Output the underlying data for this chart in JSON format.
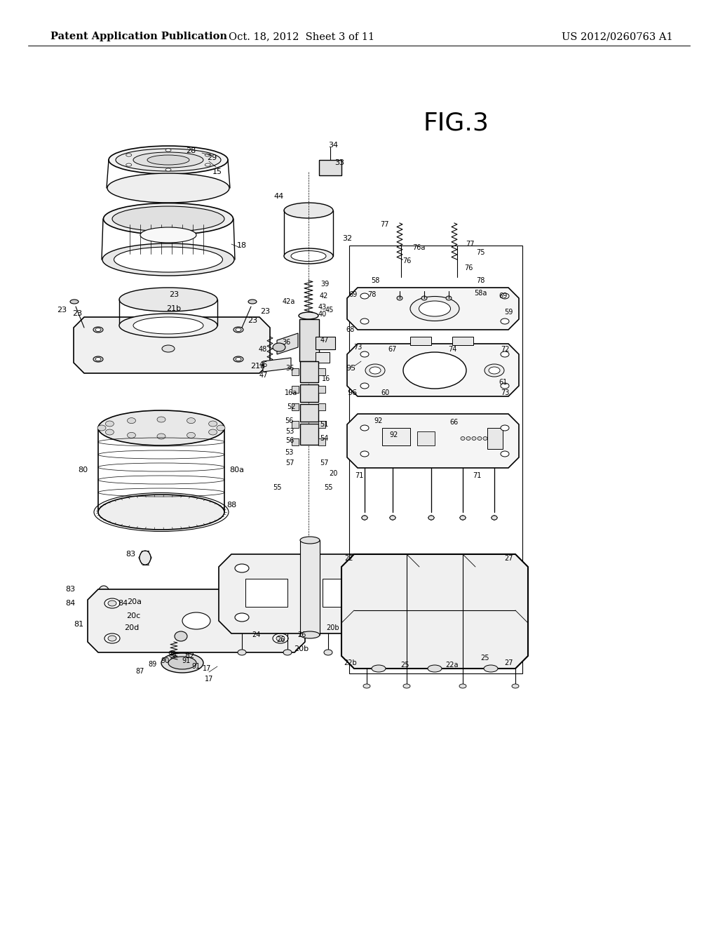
{
  "title": "FIG.3",
  "header_left": "Patent Application Publication",
  "header_center": "Oct. 18, 2012  Sheet 3 of 11",
  "header_right": "US 2012/0260763 A1",
  "background_color": "#ffffff",
  "text_color": "#000000",
  "header_fontsize": 10.5,
  "title_fontsize": 26,
  "fig_width": 10.24,
  "fig_height": 13.2,
  "dpi": 100
}
